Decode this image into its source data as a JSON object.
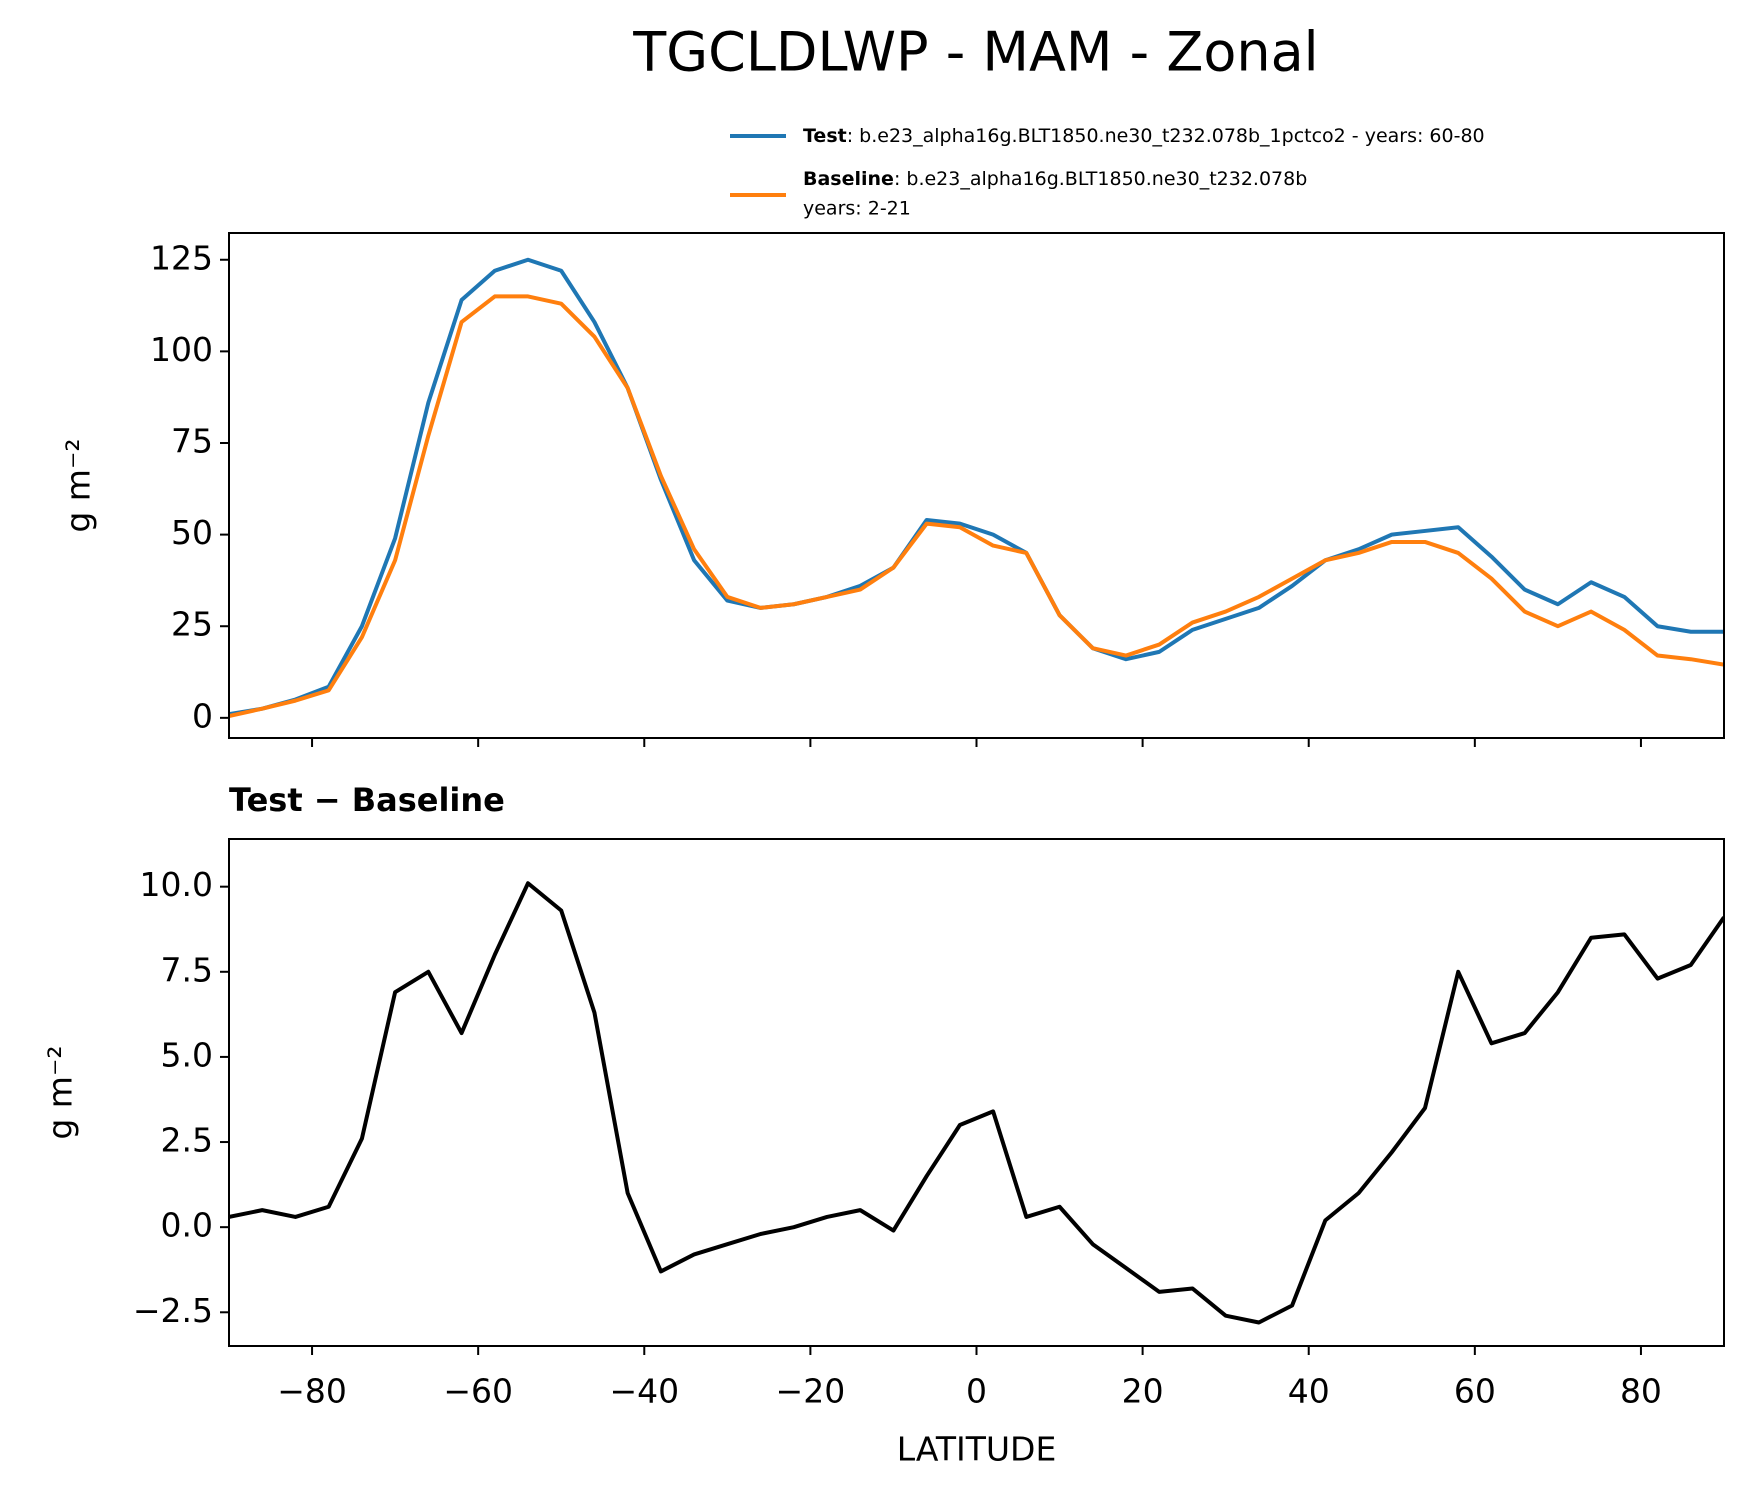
{
  "title": "TGCLDLWP - MAM - Zonal",
  "chart_data": [
    {
      "type": "line",
      "ylabel": "g m⁻²",
      "x": [
        -90,
        -86,
        -82,
        -78,
        -74,
        -70,
        -66,
        -62,
        -58,
        -54,
        -50,
        -46,
        -42,
        -38,
        -34,
        -30,
        -26,
        -22,
        -18,
        -14,
        -10,
        -6,
        -2,
        2,
        6,
        10,
        14,
        18,
        22,
        26,
        30,
        34,
        38,
        42,
        46,
        50,
        54,
        58,
        62,
        66,
        70,
        74,
        78,
        82,
        86,
        90
      ],
      "series": [
        {
          "name": "Test",
          "legend_text": [
            ": b.e23_alpha16g.BLT1850.ne30_t232.078b_1pctco2 - years: 60-80"
          ],
          "color": "#1f77b4",
          "values": [
            1,
            2.5,
            5,
            8.5,
            25,
            49,
            86,
            114,
            122,
            125,
            122,
            108,
            90,
            65,
            43,
            32,
            30,
            31,
            33,
            36,
            41,
            54,
            53,
            50,
            45,
            28,
            19,
            16,
            18,
            24,
            27,
            30,
            36,
            43,
            46,
            50,
            51,
            52,
            44,
            35,
            31,
            37,
            33,
            25,
            23.5,
            23.5
          ]
        },
        {
          "name": "Baseline",
          "legend_text": [
            ": b.e23_alpha16g.BLT1850.ne30_t232.078b",
            "years: 2-21"
          ],
          "color": "#ff7f0e",
          "values": [
            0.5,
            2.5,
            4.7,
            7.5,
            22,
            43,
            77,
            108,
            115,
            115,
            113,
            104,
            90,
            66,
            46,
            33,
            30,
            31,
            33,
            35,
            41,
            53,
            52,
            47,
            45,
            28,
            19,
            17,
            20,
            26,
            29,
            33,
            38,
            43,
            45,
            48,
            48,
            45,
            38,
            29,
            25,
            29,
            24,
            17,
            16,
            14.5
          ]
        }
      ],
      "xlim": [
        -90,
        90
      ],
      "xticks": [
        {
          "value": -80,
          "label": "−80"
        },
        {
          "value": -60,
          "label": "−60"
        },
        {
          "value": -40,
          "label": "−40"
        },
        {
          "value": -20,
          "label": "−20"
        },
        0,
        20,
        40,
        60,
        80
      ],
      "ylim": [
        -5.5,
        132.3
      ],
      "yticks": [
        0,
        25,
        50,
        75,
        100,
        125
      ]
    },
    {
      "type": "line",
      "title": "Test − Baseline",
      "ylabel": "g m⁻²",
      "xlabel": "LATITUDE",
      "x": [
        -90,
        -86,
        -82,
        -78,
        -74,
        -70,
        -66,
        -62,
        -58,
        -54,
        -50,
        -46,
        -42,
        -38,
        -34,
        -30,
        -26,
        -22,
        -18,
        -14,
        -10,
        -6,
        -2,
        2,
        6,
        10,
        14,
        18,
        22,
        26,
        30,
        34,
        38,
        42,
        46,
        50,
        54,
        58,
        62,
        66,
        70,
        74,
        78,
        82,
        86,
        90
      ],
      "series": [
        {
          "color": "#000000",
          "values": [
            0.3,
            0.5,
            0.3,
            0.6,
            2.6,
            6.9,
            7.5,
            5.7,
            8.0,
            10.1,
            9.3,
            6.3,
            1.0,
            -1.3,
            -0.8,
            -0.5,
            -0.2,
            0.0,
            0.3,
            0.5,
            -0.1,
            1.5,
            3.0,
            3.4,
            0.3,
            0.6,
            -0.5,
            -1.2,
            -1.9,
            -1.8,
            -2.6,
            -2.8,
            -2.3,
            0.2,
            1.0,
            2.2,
            3.5,
            7.5,
            5.4,
            5.7,
            6.9,
            8.5,
            8.6,
            7.3,
            7.7,
            9.1
          ]
        }
      ],
      "xlim": [
        -90,
        90
      ],
      "xticks": [
        {
          "value": -80,
          "label": "−80"
        },
        {
          "value": -60,
          "label": "−60"
        },
        {
          "value": -40,
          "label": "−40"
        },
        {
          "value": -20,
          "label": "−20"
        },
        0,
        20,
        40,
        60,
        80
      ],
      "ylim": [
        -3.49,
        11.4
      ],
      "yticks": [
        {
          "value": -2.5,
          "label": "−2.5"
        },
        {
          "value": 0,
          "label": "0.0"
        },
        {
          "value": 2.5,
          "label": "2.5"
        },
        {
          "value": 5,
          "label": "5.0"
        },
        {
          "value": 7.5,
          "label": "7.5"
        },
        {
          "value": 10,
          "label": "10.0"
        }
      ]
    }
  ]
}
